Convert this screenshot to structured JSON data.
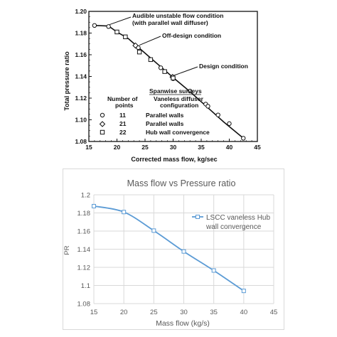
{
  "chart_data": [
    {
      "type": "scatter",
      "xlabel": "Corrected mass flow, kg/sec",
      "ylabel": "Total pressure ratio",
      "xlim": [
        15,
        45
      ],
      "ylim": [
        1.08,
        1.2
      ],
      "x_ticks": [
        "15",
        "20",
        "25",
        "30",
        "35",
        "40",
        "45"
      ],
      "y_ticks": [
        "1.08",
        "1.10",
        "1.12",
        "1.14",
        "1.16",
        "1.18",
        "1.20"
      ],
      "grid": false,
      "annotations": [
        {
          "line1": "Audible unstable flow condition",
          "line2": "(with parallel wall diffuser)",
          "x": 18.5,
          "y": 1.1865
        },
        {
          "line1": "Off-design condition",
          "line2": "",
          "x": 23.8,
          "y": 1.1675
        },
        {
          "line1": "Design condition",
          "line2": "",
          "x": 29.9,
          "y": 1.1395
        }
      ],
      "curve": {
        "x": [
          16.0,
          18.5,
          20.0,
          22.0,
          24.0,
          26.0,
          28.0,
          30.0,
          33.0,
          36.0,
          39.0,
          42.5
        ],
        "y": [
          1.187,
          1.1865,
          1.181,
          1.175,
          1.166,
          1.157,
          1.148,
          1.139,
          1.126,
          1.112,
          1.098,
          1.083
        ]
      },
      "legend": {
        "title": "Spanwise surveys",
        "col1_header_1": "Number of",
        "col1_header_2": "points",
        "col2_header_1": "Vaneless diffuser",
        "col2_header_2": "configuration",
        "rows": [
          {
            "marker": "circle",
            "points": "11",
            "config": "Parallel walls"
          },
          {
            "marker": "diamond",
            "points": "21",
            "config": "Parallel walls"
          },
          {
            "marker": "square",
            "points": "22",
            "config": "Hub wall convergence"
          }
        ]
      },
      "series": [
        {
          "marker": "circle",
          "x": [
            16.0,
            18.5,
            23.8,
            27.8,
            30.0,
            33.0,
            35.8,
            36.2,
            38.0,
            40.0,
            42.5
          ],
          "y": [
            1.187,
            1.186,
            1.1665,
            1.148,
            1.138,
            1.1265,
            1.1145,
            1.1125,
            1.1045,
            1.0965,
            1.083
          ]
        },
        {
          "marker": "diamond",
          "x": [
            23.3,
            29.9
          ],
          "y": [
            1.1685,
            1.1395
          ]
        },
        {
          "marker": "square",
          "x": [
            20.0,
            21.5,
            24.0,
            26.0,
            28.5,
            30.0
          ],
          "y": [
            1.181,
            1.1765,
            1.1625,
            1.1555,
            1.1445,
            1.1385
          ]
        }
      ]
    },
    {
      "type": "line",
      "title": "Mass flow vs Pressure ratio",
      "xlabel": "Mass flow (kg/s)",
      "ylabel": "PR",
      "xlim": [
        15,
        45
      ],
      "ylim": [
        1.08,
        1.2
      ],
      "x_ticks": [
        "15",
        "20",
        "25",
        "30",
        "35",
        "40",
        "45"
      ],
      "y_ticks": [
        "1.08",
        "1.1",
        "1.12",
        "1.14",
        "1.16",
        "1.18",
        "1.2"
      ],
      "grid": true,
      "legend_position": "top-right",
      "series": [
        {
          "name": "LSCC vaneless Hub wall convergence",
          "legend_lines": [
            "LSCC vaneless Hub",
            "wall convergence"
          ],
          "x": [
            15,
            20,
            25,
            30,
            35,
            40
          ],
          "y": [
            1.1875,
            1.181,
            1.1605,
            1.1375,
            1.1165,
            1.094
          ]
        }
      ]
    }
  ],
  "colors": {
    "xl_series": "#5b9bd5",
    "xl_grid": "#d9d9d9",
    "xl_text": "#595959",
    "scan_ink": "#111111"
  }
}
